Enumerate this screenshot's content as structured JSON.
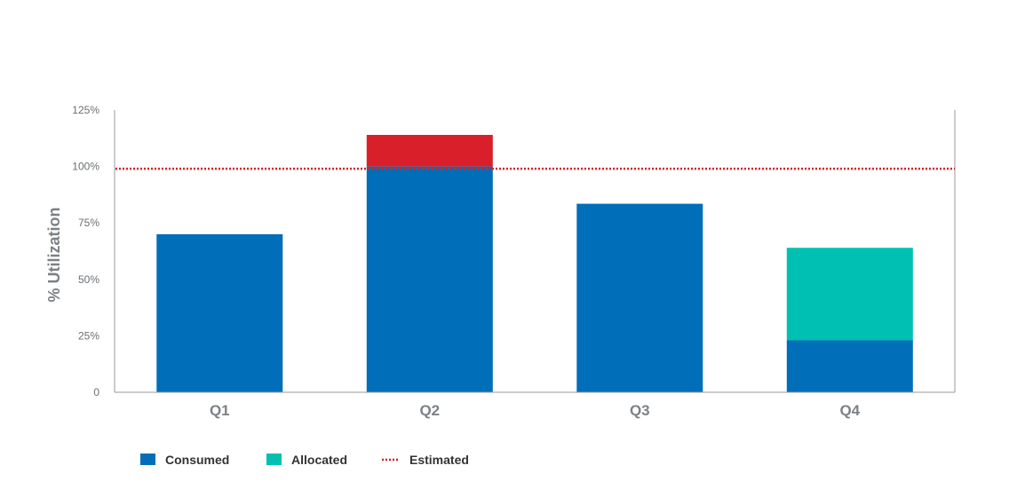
{
  "chart_data": {
    "type": "bar",
    "stacked": true,
    "categories": [
      "Q1",
      "Q2",
      "Q3",
      "Q4"
    ],
    "series": [
      {
        "name": "Consumed",
        "values": [
          70,
          100,
          83.5,
          23
        ],
        "color": "#006eb8"
      },
      {
        "name": "Allocated",
        "values": [
          0,
          0,
          0,
          41
        ],
        "color": "#00c0b4"
      },
      {
        "name": "",
        "values": [
          0,
          14,
          0,
          0
        ],
        "color": "#d91f2a"
      }
    ],
    "reference_line": {
      "name": "Estimated",
      "value": 99,
      "color": "#d91f2a",
      "style": "dotted"
    },
    "ylabel": "% Utilization",
    "xlabel": "",
    "ylim": [
      0,
      125
    ],
    "yticks": [
      0,
      25,
      50,
      75,
      100,
      125
    ],
    "ytick_labels": [
      "0",
      "25%",
      "50%",
      "75%",
      "100%",
      "125%"
    ],
    "grid": false,
    "legend_position": "bottom-left",
    "legend": [
      {
        "label": "Consumed",
        "marker": "square",
        "color": "#006eb8"
      },
      {
        "label": "Allocated",
        "marker": "square",
        "color": "#00c0b4"
      },
      {
        "label": "Estimated",
        "marker": "dotted-line",
        "color": "#d91f2a"
      }
    ]
  }
}
